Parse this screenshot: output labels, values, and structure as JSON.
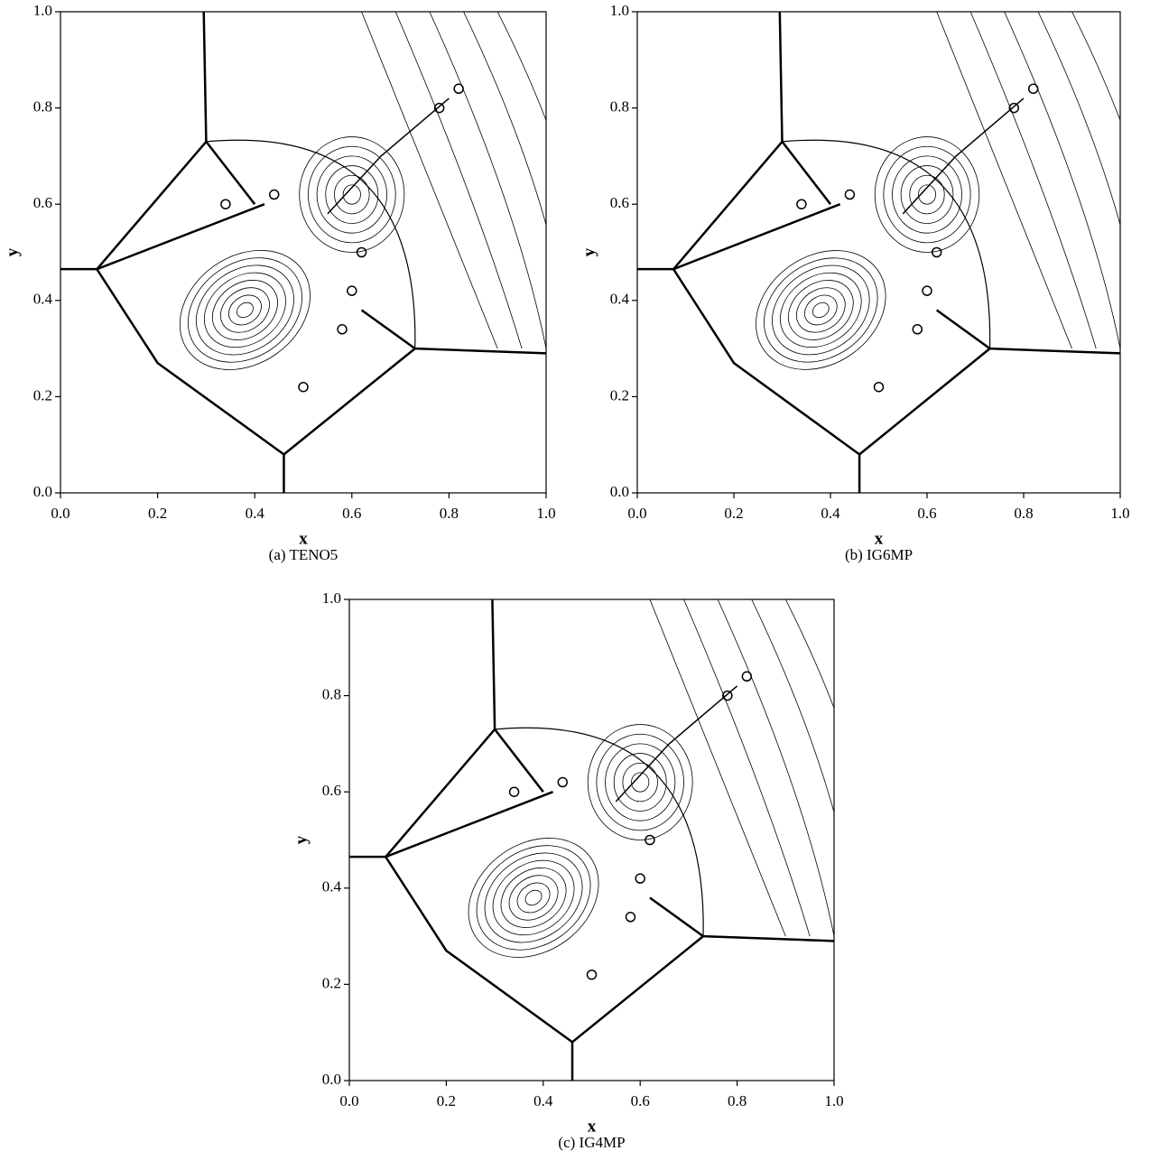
{
  "chart_data": [
    {
      "type": "contour",
      "caption": "(a) TENO5",
      "xlabel": "x",
      "ylabel": "y",
      "xlim": [
        0,
        1
      ],
      "ylim": [
        0,
        1
      ],
      "xticks": [
        {
          "value": 0,
          "label": "0.0"
        },
        0.2,
        0.4,
        0.6,
        0.8,
        {
          "value": 1,
          "label": "1.0"
        }
      ],
      "yticks": [
        {
          "value": 0,
          "label": "0.0"
        },
        0.2,
        0.4,
        0.6,
        0.8,
        {
          "value": 1,
          "label": "1.0"
        }
      ]
    },
    {
      "type": "contour",
      "caption": "(b) IG6MP",
      "xlabel": "x",
      "ylabel": "y",
      "xlim": [
        0,
        1
      ],
      "ylim": [
        0,
        1
      ],
      "xticks": [
        {
          "value": 0,
          "label": "0.0"
        },
        0.2,
        0.4,
        0.6,
        0.8,
        {
          "value": 1,
          "label": "1.0"
        }
      ],
      "yticks": [
        {
          "value": 0,
          "label": "0.0"
        },
        0.2,
        0.4,
        0.6,
        0.8,
        {
          "value": 1,
          "label": "1.0"
        }
      ]
    },
    {
      "type": "contour",
      "caption": "(c) IG4MP",
      "xlabel": "x",
      "ylabel": "y",
      "xlim": [
        0,
        1
      ],
      "ylim": [
        0,
        1
      ],
      "xticks": [
        {
          "value": 0,
          "label": "0.0"
        },
        0.2,
        0.4,
        0.6,
        0.8,
        {
          "value": 1,
          "label": "1.0"
        }
      ],
      "yticks": [
        {
          "value": 0,
          "label": "0.0"
        },
        0.2,
        0.4,
        0.6,
        0.8,
        {
          "value": 1,
          "label": "1.0"
        }
      ]
    }
  ]
}
